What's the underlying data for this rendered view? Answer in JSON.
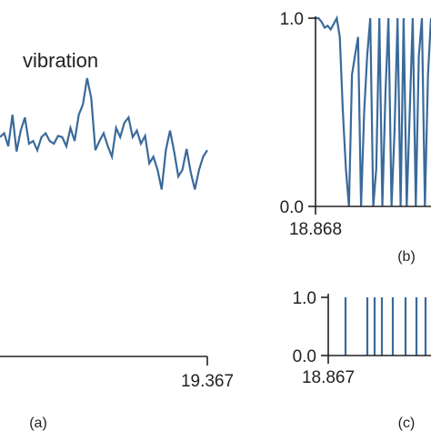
{
  "colors": {
    "line": "#3a6a9a",
    "axis": "#222222",
    "background": "#ffffff"
  },
  "labels": {
    "vibration": "vibration",
    "panel_a": "(a)",
    "panel_b": "(b)",
    "panel_c": "(c)"
  },
  "chart_data": [
    {
      "panel": "(a)",
      "type": "line",
      "annotation": "vibration",
      "x_tick_labels": [
        "19.367"
      ],
      "series": [
        {
          "values": [
            0.55,
            0.58,
            0.48,
            0.72,
            0.44,
            0.6,
            0.7,
            0.5,
            0.52,
            0.45,
            0.55,
            0.58,
            0.52,
            0.5,
            0.56,
            0.55,
            0.48,
            0.62,
            0.52,
            0.72,
            0.8,
            1.0,
            0.85,
            0.45,
            0.52,
            0.58,
            0.48,
            0.4,
            0.62,
            0.55,
            0.66,
            0.7,
            0.55,
            0.6,
            0.5,
            0.56,
            0.35,
            0.4,
            0.3,
            0.15,
            0.45,
            0.6,
            0.44,
            0.25,
            0.3,
            0.46,
            0.28,
            0.15,
            0.3,
            0.4,
            0.45
          ]
        }
      ]
    },
    {
      "panel": "(b)",
      "type": "line",
      "y_tick_labels": [
        "1.0",
        "0.0"
      ],
      "x_tick_labels": [
        "18.868"
      ],
      "ylim": [
        0,
        1
      ],
      "series": [
        {
          "values": [
            1.0,
            1.0,
            0.98,
            0.95,
            0.96,
            0.94,
            0.97,
            1.0,
            0.9,
            0.5,
            0.2,
            0.0,
            0.7,
            0.8,
            0.9,
            0.0,
            0.5,
            0.8,
            1.0,
            0.0,
            0.2,
            1.0,
            0.0,
            0.6,
            1.0,
            0.0,
            0.4,
            1.0,
            0.0,
            1.0,
            0.0,
            0.5,
            1.0,
            0.0,
            0.8,
            1.0,
            0.0,
            0.7,
            1.0
          ]
        }
      ]
    },
    {
      "panel": "(c)",
      "type": "bar",
      "y_tick_labels": [
        "1.0",
        "0.0"
      ],
      "x_tick_labels": [
        "18.867"
      ],
      "ylim": [
        0,
        1
      ],
      "series": [
        {
          "values": [
            1,
            1,
            1,
            1,
            1,
            1,
            1,
            1
          ]
        }
      ]
    }
  ]
}
